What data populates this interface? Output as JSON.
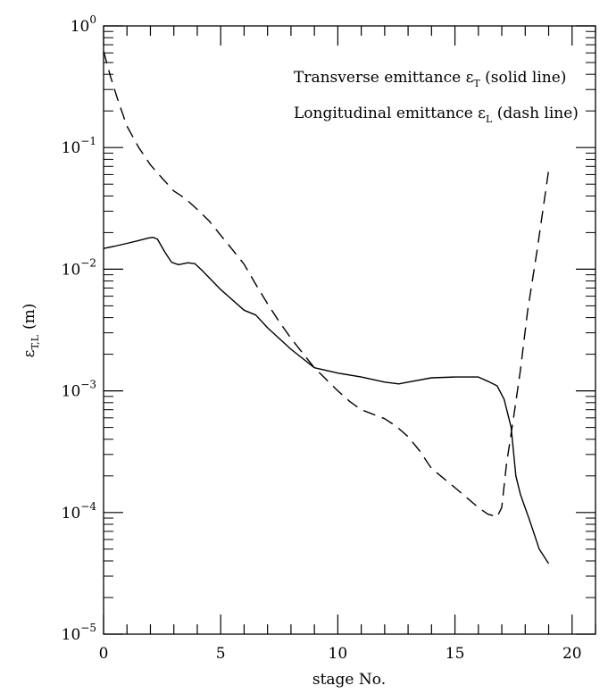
{
  "chart_data": {
    "type": "line",
    "xlabel": "stage No.",
    "ylabel": {
      "symbol": "ε",
      "subscript": "T,L",
      "unit": "(m)"
    },
    "xlim": [
      0,
      21
    ],
    "ylim": [
      1e-05,
      1
    ],
    "yscale": "log",
    "x_ticks": [
      0,
      5,
      10,
      15,
      20
    ],
    "y_ticks": [
      {
        "value": 1,
        "base": "10",
        "exp": "0"
      },
      {
        "value": 0.1,
        "base": "10",
        "exp": "−1"
      },
      {
        "value": 0.01,
        "base": "10",
        "exp": "−2"
      },
      {
        "value": 0.001,
        "base": "10",
        "exp": "−3"
      },
      {
        "value": 0.0001,
        "base": "10",
        "exp": "−4"
      },
      {
        "value": 1e-05,
        "base": "10",
        "exp": "−5"
      }
    ],
    "grid": false,
    "annotations": [
      {
        "prefix": "Transverse emittance ",
        "symbol": "ε",
        "sub": "T",
        "suffix": " (solid line)"
      },
      {
        "prefix": "Longitudinal emittance ",
        "symbol": "ε",
        "sub": "L",
        "suffix": " (dash line)"
      }
    ],
    "series": [
      {
        "style": "solid",
        "x": [
          0,
          0.5,
          1,
          1.5,
          1.9,
          2.1,
          2.3,
          2.6,
          2.9,
          3.2,
          3.6,
          3.9,
          4.2,
          5,
          6,
          6.5,
          7,
          8,
          9,
          10,
          11,
          12,
          12.6,
          13,
          14,
          15,
          16,
          16.4,
          16.8,
          17.1,
          17.4,
          17.6,
          17.8,
          18.2,
          18.6,
          19
        ],
        "y": [
          0.0148,
          0.0155,
          0.0163,
          0.0172,
          0.018,
          0.0183,
          0.0177,
          0.014,
          0.0114,
          0.0109,
          0.0113,
          0.0111,
          0.0098,
          0.0068,
          0.0046,
          0.0042,
          0.0033,
          0.0022,
          0.00155,
          0.0014,
          0.0013,
          0.00118,
          0.00114,
          0.00118,
          0.00128,
          0.0013,
          0.0013,
          0.0012,
          0.0011,
          0.00085,
          0.0005,
          0.0002,
          0.00014,
          8.5e-05,
          5e-05,
          3.8e-05
        ]
      },
      {
        "style": "dashed",
        "x": [
          0,
          0.3,
          0.6,
          1,
          1.5,
          2,
          2.5,
          3,
          3.5,
          4,
          4.5,
          5,
          5.5,
          6,
          6.5,
          7,
          7.5,
          8,
          9,
          10,
          10.5,
          11,
          12,
          12.5,
          13,
          13.5,
          14,
          15,
          16,
          16.4,
          16.8,
          17,
          17.2,
          17.5,
          17.8,
          18.1,
          18.5,
          19
        ],
        "y": [
          0.62,
          0.38,
          0.25,
          0.15,
          0.1,
          0.072,
          0.056,
          0.044,
          0.038,
          0.031,
          0.025,
          0.019,
          0.0145,
          0.011,
          0.0075,
          0.0052,
          0.0037,
          0.0027,
          0.00155,
          0.001,
          0.00082,
          0.0007,
          0.00059,
          0.00051,
          0.00042,
          0.00032,
          0.00023,
          0.00016,
          0.00011,
          9.7e-05,
          9.2e-05,
          0.00011,
          0.00025,
          0.0006,
          0.0015,
          0.0045,
          0.014,
          0.065
        ]
      }
    ]
  }
}
